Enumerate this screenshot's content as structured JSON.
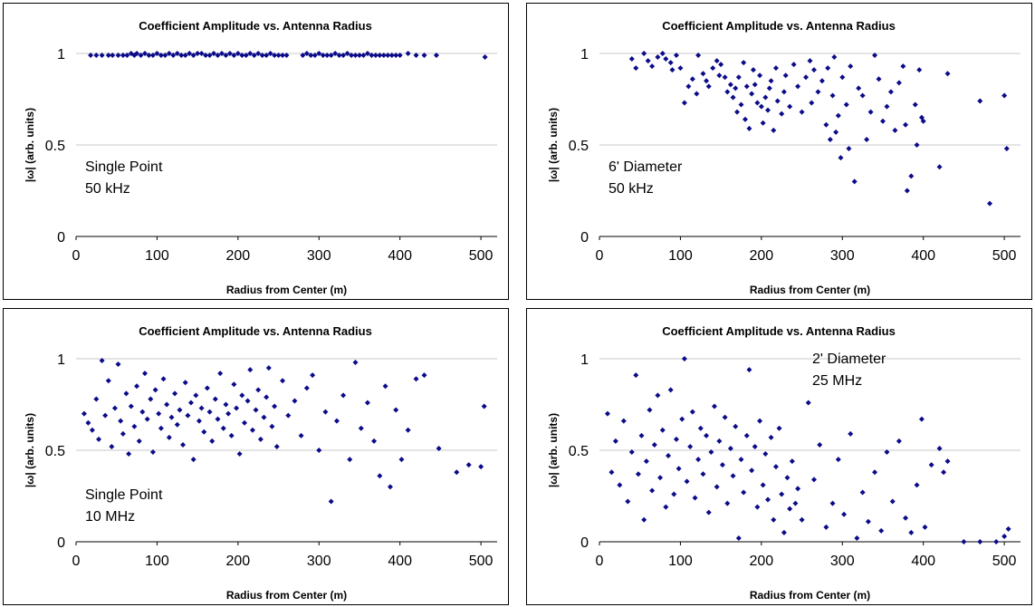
{
  "chart_data": [
    {
      "type": "scatter",
      "title": "Coefficient Amplitude vs. Antenna Radius",
      "xlabel": "Radius from Center (m)",
      "ylabel": "|ω| (arb. units)",
      "xlim": [
        0,
        520
      ],
      "ylim": [
        0,
        1
      ],
      "xticks": [
        "0",
        "100",
        "200",
        "300",
        "400",
        "500"
      ],
      "yticks": [
        "0",
        "0.5",
        "1"
      ],
      "annotation": [
        "Single Point",
        "50 kHz"
      ],
      "annotation_position": "middle-left",
      "grid": "horizontal",
      "marker_color": "#0b0b8a",
      "x": [
        18,
        25,
        32,
        40,
        45,
        52,
        58,
        63,
        68,
        72,
        75,
        80,
        85,
        90,
        95,
        100,
        105,
        110,
        115,
        120,
        125,
        130,
        135,
        140,
        145,
        150,
        155,
        160,
        165,
        170,
        175,
        180,
        185,
        190,
        195,
        200,
        205,
        210,
        215,
        220,
        225,
        230,
        235,
        240,
        245,
        250,
        255,
        260,
        280,
        285,
        290,
        295,
        300,
        305,
        310,
        315,
        320,
        325,
        330,
        335,
        340,
        345,
        350,
        355,
        360,
        365,
        370,
        375,
        380,
        385,
        390,
        395,
        400,
        410,
        420,
        430,
        445,
        505
      ],
      "y": [
        0.99,
        0.99,
        0.99,
        0.99,
        0.99,
        0.99,
        0.99,
        0.99,
        1.0,
        0.99,
        1.0,
        0.99,
        1.0,
        0.99,
        0.99,
        1.0,
        0.99,
        0.99,
        1.0,
        0.99,
        1.0,
        0.99,
        0.99,
        1.0,
        0.99,
        1.0,
        1.0,
        0.99,
        0.99,
        1.0,
        0.99,
        1.0,
        0.99,
        1.0,
        0.99,
        1.0,
        0.99,
        0.99,
        1.0,
        0.99,
        1.0,
        0.99,
        0.99,
        1.0,
        0.99,
        0.99,
        0.99,
        0.99,
        0.99,
        1.0,
        0.99,
        0.99,
        1.0,
        0.99,
        0.99,
        0.99,
        1.0,
        0.99,
        0.99,
        1.0,
        0.99,
        0.99,
        0.99,
        0.99,
        1.0,
        0.99,
        0.99,
        0.99,
        0.99,
        0.99,
        0.99,
        0.99,
        0.99,
        1.0,
        0.99,
        0.99,
        0.99,
        0.98
      ]
    },
    {
      "type": "scatter",
      "title": "Coefficient Amplitude vs. Antenna Radius",
      "xlabel": "Radius from Center (m)",
      "ylabel": "|ω| (arb. units)",
      "xlim": [
        0,
        520
      ],
      "ylim": [
        0,
        1
      ],
      "xticks": [
        "0",
        "100",
        "200",
        "300",
        "400",
        "500"
      ],
      "yticks": [
        "0",
        "0.5",
        "1"
      ],
      "annotation": [
        "6' Diameter",
        "50 kHz"
      ],
      "annotation_position": "middle-left",
      "grid": "horizontal",
      "marker_color": "#0b0b8a",
      "x": [
        40,
        45,
        55,
        60,
        65,
        72,
        78,
        82,
        88,
        90,
        95,
        100,
        105,
        110,
        115,
        120,
        122,
        128,
        132,
        135,
        140,
        145,
        148,
        150,
        155,
        158,
        162,
        165,
        168,
        170,
        172,
        175,
        178,
        180,
        182,
        185,
        188,
        190,
        192,
        195,
        198,
        200,
        202,
        205,
        208,
        210,
        212,
        215,
        218,
        220,
        225,
        228,
        230,
        235,
        240,
        245,
        250,
        255,
        260,
        262,
        265,
        270,
        275,
        280,
        282,
        285,
        288,
        290,
        292,
        295,
        298,
        300,
        305,
        308,
        310,
        315,
        320,
        325,
        330,
        335,
        340,
        345,
        350,
        355,
        360,
        365,
        370,
        375,
        378,
        380,
        385,
        390,
        392,
        395,
        398,
        400,
        420,
        430,
        470,
        482,
        500,
        503
      ],
      "y": [
        0.97,
        0.92,
        1.0,
        0.96,
        0.93,
        0.98,
        1.0,
        0.97,
        0.95,
        0.91,
        0.99,
        0.92,
        0.73,
        0.82,
        0.86,
        0.78,
        0.99,
        0.89,
        0.85,
        0.82,
        0.92,
        0.96,
        0.88,
        0.94,
        0.87,
        0.79,
        0.83,
        0.76,
        0.81,
        0.68,
        0.87,
        0.72,
        0.95,
        0.64,
        0.82,
        0.59,
        0.78,
        0.91,
        0.83,
        0.73,
        0.88,
        0.71,
        0.62,
        0.76,
        0.69,
        0.81,
        0.85,
        0.58,
        0.92,
        0.74,
        0.67,
        0.79,
        0.88,
        0.71,
        0.94,
        0.82,
        0.68,
        0.87,
        0.96,
        0.73,
        0.91,
        0.79,
        0.85,
        0.61,
        0.92,
        0.53,
        0.77,
        0.98,
        0.57,
        0.66,
        0.43,
        0.87,
        0.72,
        0.48,
        0.93,
        0.3,
        0.81,
        0.77,
        0.53,
        0.68,
        0.99,
        0.86,
        0.63,
        0.71,
        0.79,
        0.58,
        0.84,
        0.93,
        0.61,
        0.25,
        0.33,
        0.72,
        0.5,
        0.91,
        0.65,
        0.63,
        0.38,
        0.89,
        0.74,
        0.18,
        0.77,
        0.48
      ]
    },
    {
      "type": "scatter",
      "title": "Coefficient Amplitude vs. Antenna Radius",
      "xlabel": "Radius from Center (m)",
      "ylabel": "|ω| (arb. units)",
      "xlim": [
        0,
        520
      ],
      "ylim": [
        0,
        1
      ],
      "xticks": [
        "0",
        "100",
        "200",
        "300",
        "400",
        "500"
      ],
      "yticks": [
        "0",
        "0.5",
        "1"
      ],
      "annotation": [
        "Single Point",
        "10 MHz"
      ],
      "annotation_position": "lower-left",
      "grid": "horizontal",
      "marker_color": "#0b0b8a",
      "x": [
        10,
        15,
        20,
        25,
        28,
        32,
        36,
        40,
        44,
        48,
        52,
        55,
        58,
        62,
        65,
        68,
        72,
        75,
        78,
        82,
        85,
        88,
        92,
        95,
        98,
        102,
        105,
        108,
        112,
        115,
        118,
        122,
        125,
        128,
        132,
        135,
        138,
        142,
        145,
        148,
        152,
        155,
        158,
        162,
        165,
        168,
        172,
        175,
        178,
        182,
        185,
        188,
        192,
        195,
        198,
        202,
        205,
        208,
        212,
        215,
        218,
        222,
        225,
        228,
        232,
        235,
        238,
        242,
        245,
        248,
        255,
        262,
        270,
        278,
        285,
        292,
        300,
        308,
        315,
        322,
        330,
        338,
        345,
        352,
        360,
        368,
        375,
        382,
        388,
        395,
        402,
        410,
        420,
        430,
        448,
        470,
        485,
        500,
        504
      ],
      "y": [
        0.7,
        0.65,
        0.61,
        0.78,
        0.56,
        0.99,
        0.69,
        0.88,
        0.52,
        0.73,
        0.97,
        0.66,
        0.59,
        0.81,
        0.48,
        0.74,
        0.63,
        0.85,
        0.55,
        0.71,
        0.92,
        0.67,
        0.78,
        0.49,
        0.83,
        0.7,
        0.62,
        0.89,
        0.75,
        0.57,
        0.68,
        0.81,
        0.64,
        0.72,
        0.53,
        0.87,
        0.69,
        0.76,
        0.45,
        0.8,
        0.66,
        0.73,
        0.6,
        0.84,
        0.71,
        0.55,
        0.78,
        0.67,
        0.92,
        0.62,
        0.75,
        0.7,
        0.58,
        0.86,
        0.73,
        0.48,
        0.8,
        0.65,
        0.77,
        0.94,
        0.61,
        0.72,
        0.83,
        0.56,
        0.68,
        0.79,
        0.95,
        0.63,
        0.74,
        0.52,
        0.88,
        0.69,
        0.77,
        0.58,
        0.84,
        0.91,
        0.5,
        0.71,
        0.22,
        0.66,
        0.8,
        0.45,
        0.98,
        0.62,
        0.76,
        0.55,
        0.36,
        0.85,
        0.3,
        0.72,
        0.45,
        0.61,
        0.89,
        0.91,
        0.51,
        0.38,
        0.42,
        0.41,
        0.74
      ]
    },
    {
      "type": "scatter",
      "title": "Coefficient Amplitude vs. Antenna Radius",
      "xlabel": "Radius from Center (m)",
      "ylabel": "|ω| (arb. units)",
      "xlim": [
        0,
        520
      ],
      "ylim": [
        0,
        1
      ],
      "xticks": [
        "0",
        "100",
        "200",
        "300",
        "400",
        "500"
      ],
      "yticks": [
        "0",
        "0.5",
        "1"
      ],
      "annotation": [
        "2' Diameter",
        "25 MHz"
      ],
      "annotation_position": "top-right",
      "grid": "horizontal",
      "marker_color": "#0b0b8a",
      "x": [
        10,
        15,
        20,
        25,
        30,
        35,
        40,
        45,
        48,
        52,
        55,
        58,
        62,
        65,
        68,
        72,
        75,
        78,
        82,
        85,
        88,
        92,
        95,
        98,
        102,
        105,
        108,
        112,
        115,
        118,
        122,
        125,
        128,
        132,
        135,
        138,
        142,
        145,
        148,
        152,
        155,
        158,
        162,
        165,
        168,
        172,
        175,
        178,
        182,
        185,
        188,
        192,
        195,
        198,
        202,
        205,
        208,
        212,
        215,
        218,
        222,
        225,
        228,
        232,
        235,
        238,
        242,
        245,
        250,
        258,
        265,
        272,
        280,
        288,
        295,
        302,
        310,
        318,
        325,
        332,
        340,
        348,
        355,
        362,
        370,
        378,
        385,
        392,
        398,
        402,
        410,
        420,
        425,
        430,
        450,
        470,
        490,
        500,
        505
      ],
      "y": [
        0.7,
        0.38,
        0.55,
        0.31,
        0.66,
        0.22,
        0.49,
        0.91,
        0.37,
        0.58,
        0.12,
        0.44,
        0.72,
        0.28,
        0.53,
        0.8,
        0.35,
        0.61,
        0.19,
        0.47,
        0.83,
        0.26,
        0.56,
        0.4,
        0.67,
        1.0,
        0.33,
        0.52,
        0.71,
        0.24,
        0.45,
        0.62,
        0.37,
        0.58,
        0.16,
        0.49,
        0.74,
        0.3,
        0.55,
        0.42,
        0.68,
        0.21,
        0.51,
        0.36,
        0.63,
        0.02,
        0.45,
        0.27,
        0.58,
        0.94,
        0.39,
        0.52,
        0.19,
        0.66,
        0.31,
        0.48,
        0.23,
        0.57,
        0.12,
        0.41,
        0.62,
        0.26,
        0.05,
        0.35,
        0.18,
        0.44,
        0.21,
        0.29,
        0.12,
        0.76,
        0.34,
        0.53,
        0.08,
        0.21,
        0.45,
        0.15,
        0.59,
        0.02,
        0.27,
        0.11,
        0.38,
        0.06,
        0.49,
        0.22,
        0.55,
        0.13,
        0.05,
        0.31,
        0.67,
        0.08,
        0.42,
        0.51,
        0.38,
        0.44,
        0.0,
        0.0,
        0.0,
        0.03,
        0.07
      ]
    }
  ]
}
